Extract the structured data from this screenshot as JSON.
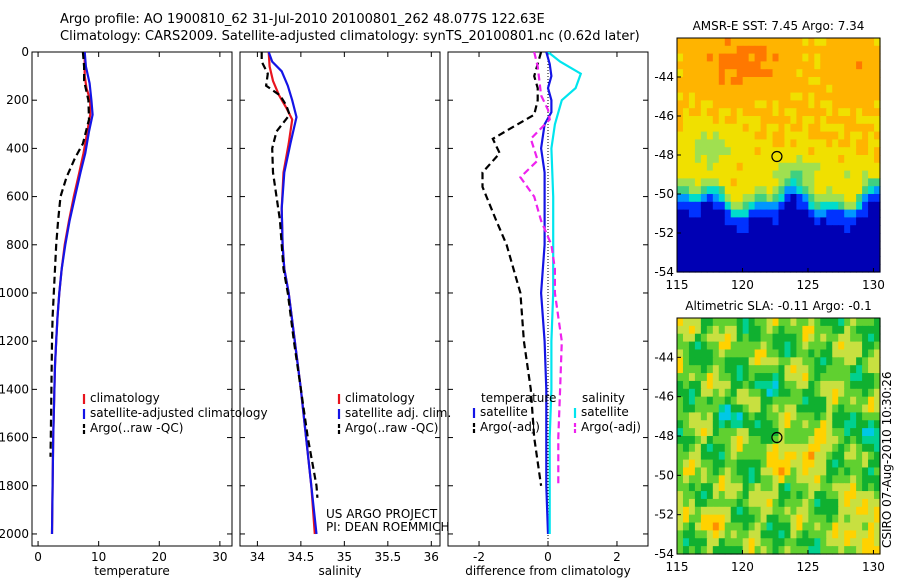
{
  "title": {
    "line1": "Argo profile: AO 1900810_62 31-Jul-2010 20100801_262 48.077S 122.63E",
    "line2": "Climatology: CARS2009. Satellite-adjusted climatology: synTS_20100801.nc (0.62d later)"
  },
  "colors": {
    "climatology": "#e8141e",
    "satellite": "#1414e6",
    "argo": "#000000",
    "sal_satellite": "#00e5ee",
    "sal_argo": "#ee22ee"
  },
  "side_text": "CSIRO 07-Aug-2010 10:30:26",
  "footer": {
    "line1": "US ARGO PROJECT",
    "line2": "PI: DEAN ROEMMICH"
  },
  "chart_data": [
    {
      "type": "line",
      "id": "temperature",
      "xlabel": "temperature",
      "ylabel": "",
      "xlim": [
        -1,
        32
      ],
      "ylim": [
        2050,
        0
      ],
      "xticks": [
        0,
        10,
        20,
        30
      ],
      "yticks": [
        0,
        200,
        400,
        600,
        800,
        1000,
        1200,
        1400,
        1600,
        1800,
        2000
      ],
      "legend": {
        "placement": "lower-right",
        "entries": [
          "climatology",
          "satellite-adjusted climatology",
          "Argo(..raw -QC)"
        ]
      },
      "series": [
        {
          "name": "climatology",
          "color": "climatology",
          "style": "solid",
          "points": [
            [
              7.7,
              0
            ],
            [
              7.7,
              100
            ],
            [
              8.0,
              150
            ],
            [
              8.6,
              200
            ],
            [
              8.6,
              260
            ],
            [
              8.0,
              350
            ],
            [
              7.5,
              420
            ],
            [
              6.8,
              500
            ],
            [
              5.9,
              600
            ],
            [
              5.1,
              700
            ],
            [
              4.4,
              800
            ],
            [
              3.9,
              900
            ],
            [
              3.5,
              1000
            ],
            [
              3.2,
              1100
            ],
            [
              3.0,
              1200
            ],
            [
              2.8,
              1300
            ],
            [
              2.7,
              1400
            ],
            [
              2.6,
              1500
            ],
            [
              2.5,
              1600
            ],
            [
              2.45,
              1700
            ],
            [
              2.4,
              1800
            ],
            [
              2.35,
              1900
            ],
            [
              2.3,
              2000
            ]
          ]
        },
        {
          "name": "satellite-adjusted climatology",
          "color": "satellite",
          "style": "solid",
          "points": [
            [
              7.7,
              0
            ],
            [
              7.9,
              60
            ],
            [
              8.5,
              130
            ],
            [
              8.8,
              200
            ],
            [
              9.0,
              260
            ],
            [
              8.4,
              330
            ],
            [
              7.8,
              420
            ],
            [
              7.0,
              500
            ],
            [
              6.1,
              600
            ],
            [
              5.2,
              700
            ],
            [
              4.5,
              800
            ],
            [
              3.9,
              900
            ],
            [
              3.5,
              1000
            ],
            [
              3.2,
              1100
            ],
            [
              3.0,
              1200
            ],
            [
              2.8,
              1300
            ],
            [
              2.7,
              1400
            ],
            [
              2.6,
              1500
            ],
            [
              2.5,
              1600
            ],
            [
              2.45,
              1700
            ],
            [
              2.4,
              1800
            ],
            [
              2.35,
              1900
            ],
            [
              2.3,
              2000
            ]
          ]
        },
        {
          "name": "Argo(..raw -QC)",
          "color": "argo",
          "style": "dashed",
          "points": [
            [
              7.4,
              0
            ],
            [
              7.6,
              60
            ],
            [
              7.6,
              120
            ],
            [
              8.3,
              200
            ],
            [
              8.4,
              280
            ],
            [
              7.4,
              380
            ],
            [
              6.1,
              440
            ],
            [
              4.7,
              520
            ],
            [
              3.7,
              600
            ],
            [
              3.3,
              700
            ],
            [
              3.0,
              800
            ],
            [
              2.8,
              900
            ],
            [
              2.6,
              1000
            ],
            [
              2.4,
              1100
            ],
            [
              2.3,
              1200
            ],
            [
              2.25,
              1300
            ],
            [
              2.2,
              1400
            ],
            [
              2.15,
              1500
            ],
            [
              2.1,
              1600
            ],
            [
              2.05,
              1680
            ]
          ]
        }
      ]
    },
    {
      "type": "line",
      "id": "salinity",
      "xlabel": "salinity",
      "ylabel": "",
      "xlim": [
        33.8,
        36.1
      ],
      "ylim": [
        2050,
        0
      ],
      "xticks": [
        34,
        34.5,
        35,
        35.5,
        36
      ],
      "legend": {
        "placement": "lower-right",
        "entries": [
          "climatology",
          "satellite adj. clim.",
          "Argo(..raw -QC)"
        ]
      },
      "series": [
        {
          "name": "climatology",
          "color": "climatology",
          "style": "solid",
          "points": [
            [
              34.13,
              0
            ],
            [
              34.14,
              60
            ],
            [
              34.18,
              120
            ],
            [
              34.25,
              180
            ],
            [
              34.33,
              230
            ],
            [
              34.4,
              280
            ],
            [
              34.36,
              380
            ],
            [
              34.3,
              500
            ],
            [
              34.28,
              650
            ],
            [
              34.29,
              800
            ],
            [
              34.31,
              900
            ],
            [
              34.36,
              1000
            ],
            [
              34.43,
              1200
            ],
            [
              34.5,
              1400
            ],
            [
              34.56,
              1600
            ],
            [
              34.62,
              1800
            ],
            [
              34.66,
              2000
            ]
          ]
        },
        {
          "name": "satellite adj. clim.",
          "color": "satellite",
          "style": "solid",
          "points": [
            [
              34.13,
              0
            ],
            [
              34.17,
              40
            ],
            [
              34.28,
              80
            ],
            [
              34.35,
              140
            ],
            [
              34.4,
              200
            ],
            [
              34.45,
              270
            ],
            [
              34.38,
              380
            ],
            [
              34.31,
              500
            ],
            [
              34.28,
              650
            ],
            [
              34.29,
              800
            ],
            [
              34.31,
              900
            ],
            [
              34.36,
              1000
            ],
            [
              34.43,
              1200
            ],
            [
              34.5,
              1400
            ],
            [
              34.56,
              1600
            ],
            [
              34.62,
              1800
            ],
            [
              34.68,
              2000
            ]
          ]
        },
        {
          "name": "Argo(..raw -QC)",
          "color": "argo",
          "style": "dashed",
          "points": [
            [
              34.05,
              0
            ],
            [
              34.05,
              40
            ],
            [
              34.12,
              90
            ],
            [
              34.1,
              140
            ],
            [
              34.26,
              180
            ],
            [
              34.33,
              220
            ],
            [
              34.37,
              260
            ],
            [
              34.22,
              330
            ],
            [
              34.17,
              400
            ],
            [
              34.18,
              500
            ],
            [
              34.22,
              600
            ],
            [
              34.26,
              700
            ],
            [
              34.28,
              800
            ],
            [
              34.3,
              900
            ],
            [
              34.35,
              1000
            ],
            [
              34.42,
              1200
            ],
            [
              34.5,
              1400
            ],
            [
              34.58,
              1600
            ],
            [
              34.68,
              1800
            ],
            [
              34.69,
              1850
            ]
          ]
        }
      ]
    },
    {
      "type": "line",
      "id": "difference",
      "xlabel": "difference from climatology",
      "ylabel": "",
      "xlim": [
        -2.9,
        2.9
      ],
      "ylim": [
        2050,
        0
      ],
      "xticks": [
        -2,
        0,
        2
      ],
      "legend": {
        "placement": "lower",
        "groups": [
          {
            "heading": "temperature",
            "entries": [
              "satellite",
              "Argo(-adj)"
            ]
          },
          {
            "heading": "salinity",
            "entries": [
              "satellite",
              "Argo(-adj)"
            ]
          }
        ]
      },
      "series": [
        {
          "name": "temperature satellite",
          "color": "satellite",
          "style": "solid",
          "points": [
            [
              -0.05,
              0
            ],
            [
              0.05,
              50
            ],
            [
              0.1,
              100
            ],
            [
              0.0,
              150
            ],
            [
              0.1,
              200
            ],
            [
              0.1,
              250
            ],
            [
              -0.1,
              300
            ],
            [
              -0.2,
              400
            ],
            [
              -0.1,
              500
            ],
            [
              -0.1,
              600
            ],
            [
              -0.1,
              800
            ],
            [
              -0.2,
              1000
            ],
            [
              -0.1,
              1200
            ],
            [
              -0.05,
              1400
            ],
            [
              -0.05,
              1600
            ],
            [
              -0.05,
              1800
            ],
            [
              0.0,
              2000
            ]
          ]
        },
        {
          "name": "temperature Argo(-adj)",
          "color": "argo",
          "style": "dashed",
          "points": [
            [
              -0.2,
              0
            ],
            [
              -0.3,
              50
            ],
            [
              -0.4,
              100
            ],
            [
              -0.3,
              150
            ],
            [
              -0.3,
              200
            ],
            [
              -0.4,
              260
            ],
            [
              -1.0,
              310
            ],
            [
              -1.6,
              360
            ],
            [
              -1.4,
              420
            ],
            [
              -1.9,
              500
            ],
            [
              -1.9,
              560
            ],
            [
              -1.5,
              700
            ],
            [
              -1.2,
              800
            ],
            [
              -1.0,
              900
            ],
            [
              -0.8,
              1000
            ],
            [
              -0.7,
              1200
            ],
            [
              -0.5,
              1400
            ],
            [
              -0.4,
              1600
            ],
            [
              -0.2,
              1800
            ]
          ]
        },
        {
          "name": "salinity satellite",
          "color": "sal_satellite",
          "style": "solid",
          "points": [
            [
              0.0,
              0
            ],
            [
              0.35,
              40
            ],
            [
              0.95,
              90
            ],
            [
              0.8,
              150
            ],
            [
              0.4,
              200
            ],
            [
              0.2,
              300
            ],
            [
              0.1,
              400
            ],
            [
              0.15,
              600
            ],
            [
              0.15,
              800
            ],
            [
              0.15,
              1000
            ],
            [
              0.1,
              1200
            ],
            [
              0.1,
              1400
            ],
            [
              0.05,
              1600
            ],
            [
              0.05,
              1800
            ],
            [
              0.05,
              2000
            ]
          ]
        },
        {
          "name": "salinity Argo(-adj)",
          "color": "sal_argo",
          "style": "dashed",
          "points": [
            [
              -0.4,
              0
            ],
            [
              -0.3,
              60
            ],
            [
              -0.25,
              120
            ],
            [
              -0.2,
              180
            ],
            [
              0.0,
              240
            ],
            [
              0.05,
              280
            ],
            [
              -0.5,
              360
            ],
            [
              -0.3,
              450
            ],
            [
              -0.8,
              520
            ],
            [
              -0.4,
              600
            ],
            [
              -0.2,
              700
            ],
            [
              0.1,
              800
            ],
            [
              0.2,
              900
            ],
            [
              0.2,
              1000
            ],
            [
              0.3,
              1100
            ],
            [
              0.4,
              1200
            ],
            [
              0.35,
              1400
            ],
            [
              0.3,
              1600
            ],
            [
              0.3,
              1800
            ]
          ]
        }
      ]
    },
    {
      "type": "heatmap",
      "id": "sst_map",
      "title": "AMSR-E SST: 7.45 Argo: 7.34",
      "xlim": [
        115,
        130.5
      ],
      "ylim": [
        -54,
        -42
      ],
      "xticks": [
        115,
        120,
        125,
        130
      ],
      "yticks": [
        -44,
        -46,
        -48,
        -50,
        -52,
        -54
      ],
      "marker": {
        "x": 122.63,
        "y": -48.077
      },
      "palette": [
        "#0000b4",
        "#0032ff",
        "#0096ff",
        "#00dccc",
        "#40d080",
        "#a0e050",
        "#f0e000",
        "#ffb400",
        "#ff7800"
      ]
    },
    {
      "type": "heatmap",
      "id": "sla_map",
      "title": "Altimetric SLA: -0.11 Argo: -0.1",
      "xlim": [
        115,
        130.5
      ],
      "ylim": [
        -54,
        -42
      ],
      "xticks": [
        115,
        120,
        125,
        130
      ],
      "yticks": [
        -44,
        -46,
        -48,
        -50,
        -52,
        -54
      ],
      "marker": {
        "x": 122.63,
        "y": -48.077
      },
      "palette": [
        "#1e78ff",
        "#00c8e6",
        "#00d090",
        "#10b030",
        "#60d030",
        "#c8e040",
        "#ffd200",
        "#ff9000",
        "#e03010"
      ]
    }
  ]
}
